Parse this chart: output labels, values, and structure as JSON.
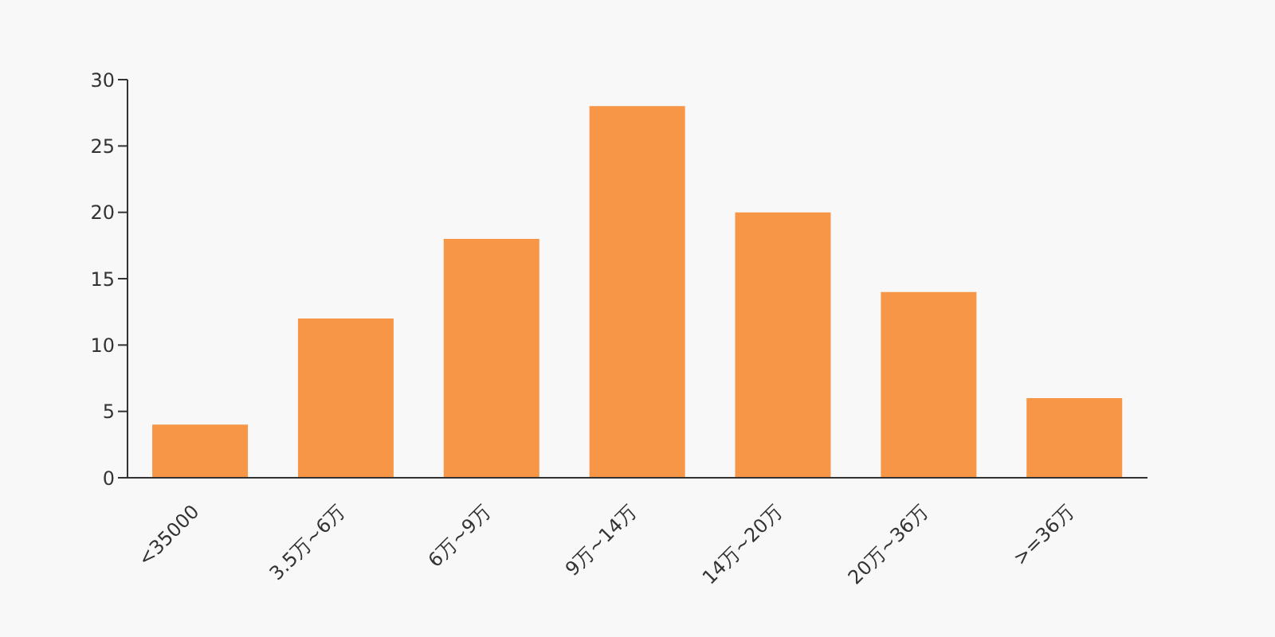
{
  "chart_data": {
    "type": "bar",
    "categories": [
      "<35000",
      "3.5万~6万",
      "6万~9万",
      "9万~14万",
      "14万~20万",
      "20万~36万",
      ">=36万"
    ],
    "values": [
      4,
      12,
      18,
      28,
      20,
      14,
      6
    ],
    "color": "#f79646",
    "ylim": [
      0,
      30
    ],
    "yticks": [
      0,
      5,
      10,
      15,
      20,
      25,
      30
    ],
    "grid": false,
    "legend": false
  }
}
